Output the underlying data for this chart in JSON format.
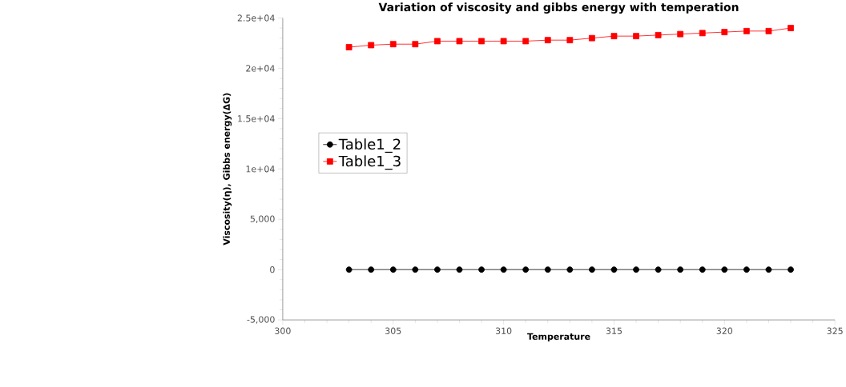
{
  "chart_data": {
    "type": "line",
    "title": "Variation of viscosity and gibbs energy with temperation",
    "xlabel": "Temperature",
    "ylabel": "Viscosity(η), Gibbs energy(ΔG)",
    "x": [
      303,
      304,
      305,
      306,
      307,
      308,
      309,
      310,
      311,
      312,
      313,
      314,
      315,
      316,
      317,
      318,
      319,
      320,
      321,
      322,
      323
    ],
    "series": [
      {
        "name": "Table1_2",
        "color": "#000000",
        "marker": "circle",
        "values": [
          0,
          0,
          0,
          0,
          0,
          0,
          0,
          0,
          0,
          0,
          0,
          0,
          0,
          0,
          0,
          0,
          0,
          0,
          0,
          0,
          0
        ]
      },
      {
        "name": "Table1_3",
        "color": "#ff0000",
        "marker": "square",
        "values": [
          22100,
          22300,
          22400,
          22400,
          22700,
          22700,
          22700,
          22700,
          22700,
          22800,
          22800,
          23000,
          23200,
          23200,
          23300,
          23400,
          23500,
          23600,
          23700,
          23700,
          24000
        ]
      }
    ],
    "xlim": [
      300,
      325
    ],
    "xticks": [
      300,
      305,
      310,
      315,
      320,
      325
    ],
    "ylim": [
      -5000,
      25000
    ],
    "yticks": [
      {
        "value": -5000,
        "label": "-5,000"
      },
      0,
      {
        "value": 5000,
        "label": "5,000"
      },
      {
        "value": 10000,
        "label": "1e+04"
      },
      {
        "value": 15000,
        "label": "1.5e+04"
      },
      {
        "value": 20000,
        "label": "2e+04"
      },
      {
        "value": 25000,
        "label": "2.5e+04"
      }
    ],
    "grid": false,
    "legend": "left",
    "line_style": "solid"
  }
}
